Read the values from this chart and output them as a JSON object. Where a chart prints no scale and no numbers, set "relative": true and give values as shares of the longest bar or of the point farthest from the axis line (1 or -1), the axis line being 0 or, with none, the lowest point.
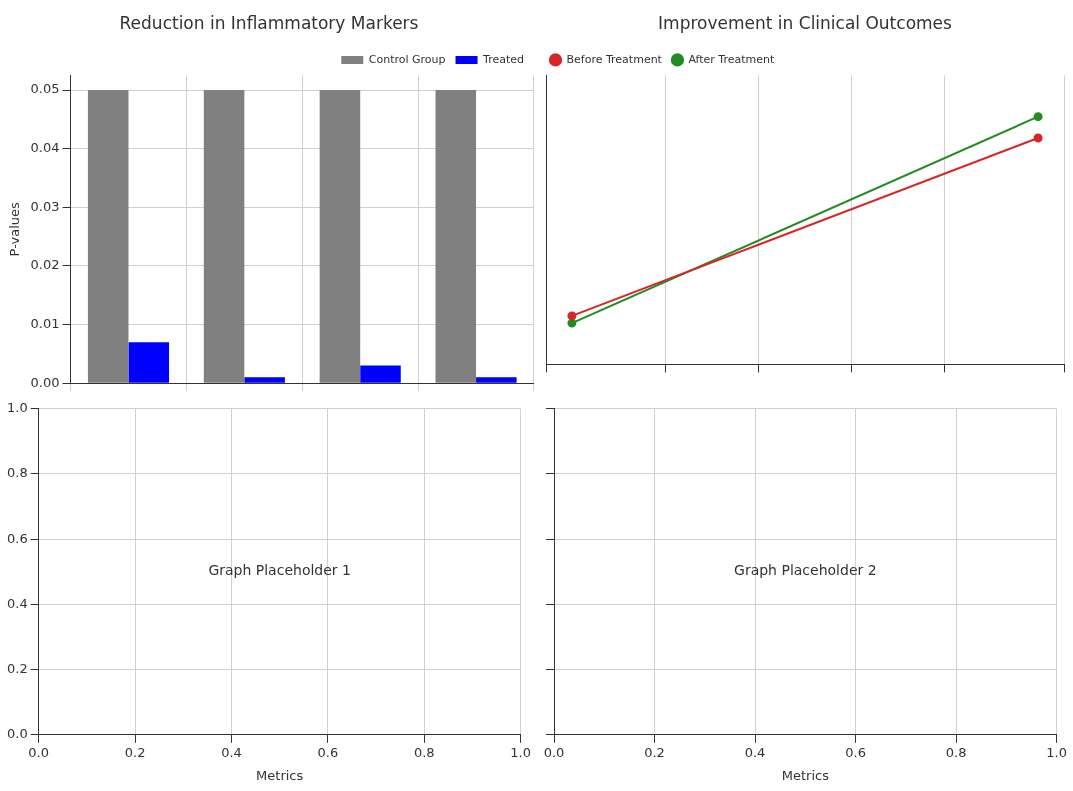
{
  "chart_data": [
    {
      "type": "bar",
      "title": "Reduction in Inflammatory Markers",
      "ylabel": "P-values",
      "categories": [
        null,
        null,
        null,
        null
      ],
      "series": [
        {
          "name": "Control Group",
          "color": "#808080",
          "values": [
            0.05,
            0.05,
            0.05,
            0.05
          ]
        },
        {
          "name": "Treated",
          "color": "#0000ff",
          "values": [
            0.007,
            0.001,
            0.003,
            0.001
          ]
        }
      ],
      "ylim": [
        0,
        0.0525
      ],
      "yticks": [
        {
          "value": 0,
          "label": "0.00"
        },
        {
          "value": 0.01,
          "label": "0.01"
        },
        {
          "value": 0.02,
          "label": "0.02"
        },
        {
          "value": 0.03,
          "label": "0.03"
        },
        {
          "value": 0.04,
          "label": "0.04"
        },
        {
          "value": 0.05,
          "label": "0.05"
        }
      ],
      "grid": true,
      "legend": "top right",
      "tick_labels": "y"
    },
    {
      "type": "line",
      "title": "Improvement in Clinical Outcomes",
      "relative": true,
      "categories": [
        null,
        null
      ],
      "series": [
        {
          "name": "Before Treatment",
          "color": "#d62728",
          "values": [
            0.035,
            0.897
          ]
        },
        {
          "name": "After Treatment",
          "color": "#228b22",
          "values": [
            0,
            1
          ]
        }
      ],
      "grid": "x",
      "legend": "top left",
      "marker": "circle",
      "tick_labels": false
    },
    {
      "type": "scatter",
      "xlabel": "Metrics",
      "annotations": [
        "Graph Placeholder 1"
      ],
      "xlim": [
        0,
        1
      ],
      "ylim": [
        0,
        1
      ],
      "xticks": [
        {
          "value": 0,
          "label": "0.0"
        },
        {
          "value": 0.2,
          "label": "0.2"
        },
        {
          "value": 0.4,
          "label": "0.4"
        },
        {
          "value": 0.6,
          "label": "0.6"
        },
        {
          "value": 0.8,
          "label": "0.8"
        },
        {
          "value": 1,
          "label": "1.0"
        }
      ],
      "yticks": [
        {
          "value": 0,
          "label": "0.0"
        },
        {
          "value": 0.2,
          "label": "0.2"
        },
        {
          "value": 0.4,
          "label": "0.4"
        },
        {
          "value": 0.6,
          "label": "0.6"
        },
        {
          "value": 0.8,
          "label": "0.8"
        },
        {
          "value": 1,
          "label": "1.0"
        }
      ],
      "grid": true
    },
    {
      "type": "scatter",
      "xlabel": "Metrics",
      "annotations": [
        "Graph Placeholder 2"
      ],
      "xlim": [
        0,
        1
      ],
      "ylim": [
        0,
        1
      ],
      "xticks": [
        {
          "value": 0,
          "label": "0.0"
        },
        {
          "value": 0.2,
          "label": "0.2"
        },
        {
          "value": 0.4,
          "label": "0.4"
        },
        {
          "value": 0.6,
          "label": "0.6"
        },
        {
          "value": 0.8,
          "label": "0.8"
        },
        {
          "value": 1,
          "label": "1.0"
        }
      ],
      "yticks": [
        {
          "value": 0,
          "label": null
        },
        {
          "value": 0.2,
          "label": null
        },
        {
          "value": 0.4,
          "label": null
        },
        {
          "value": 0.6,
          "label": null
        },
        {
          "value": 0.8,
          "label": null
        },
        {
          "value": 1,
          "label": null
        }
      ],
      "grid": true,
      "tick_labels": "x"
    }
  ]
}
